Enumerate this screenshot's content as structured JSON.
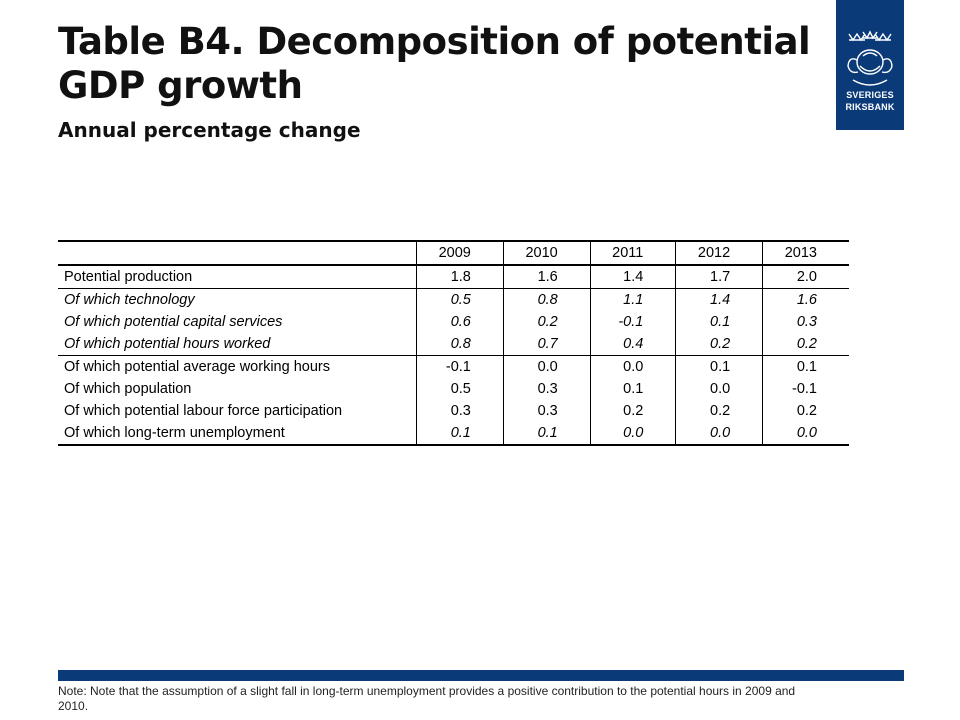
{
  "header": {
    "title": "Table B4. Decomposition of potential GDP growth",
    "subtitle": "Annual percentage change"
  },
  "logo": {
    "line1": "SVERIGES",
    "line2": "RIKSBANK",
    "color": "#0b3a78"
  },
  "table": {
    "years": [
      "2009",
      "2010",
      "2011",
      "2012",
      "2013"
    ],
    "rows": [
      {
        "label": "Potential production",
        "values": [
          "1.8",
          "1.6",
          "1.4",
          "1.7",
          "2.0"
        ]
      },
      {
        "label": "Of which technology",
        "values": [
          "0.5",
          "0.8",
          "1.1",
          "1.4",
          "1.6"
        ]
      },
      {
        "label": "Of which potential capital services",
        "values": [
          "0.6",
          "0.2",
          "-0.1",
          "0.1",
          "0.3"
        ]
      },
      {
        "label": "Of which potential hours worked",
        "values": [
          "0.8",
          "0.7",
          "0.4",
          "0.2",
          "0.2"
        ]
      },
      {
        "label": "Of which potential average working hours",
        "values": [
          "-0.1",
          "0.0",
          "0.0",
          "0.1",
          "0.1"
        ]
      },
      {
        "label": "Of which population",
        "values": [
          "0.5",
          "0.3",
          "0.1",
          "0.0",
          "-0.1"
        ]
      },
      {
        "label": "Of which potential labour force participation",
        "values": [
          "0.3",
          "0.3",
          "0.2",
          "0.2",
          "0.2"
        ]
      },
      {
        "label": "Of which long-term unemployment",
        "values": [
          "0.1",
          "0.1",
          "0.0",
          "0.0",
          "0.0"
        ]
      }
    ]
  },
  "note": "Note: Note that the assumption of a slight fall in long-term unemployment provides a positive contribution to the potential hours in 2009 and 2010."
}
